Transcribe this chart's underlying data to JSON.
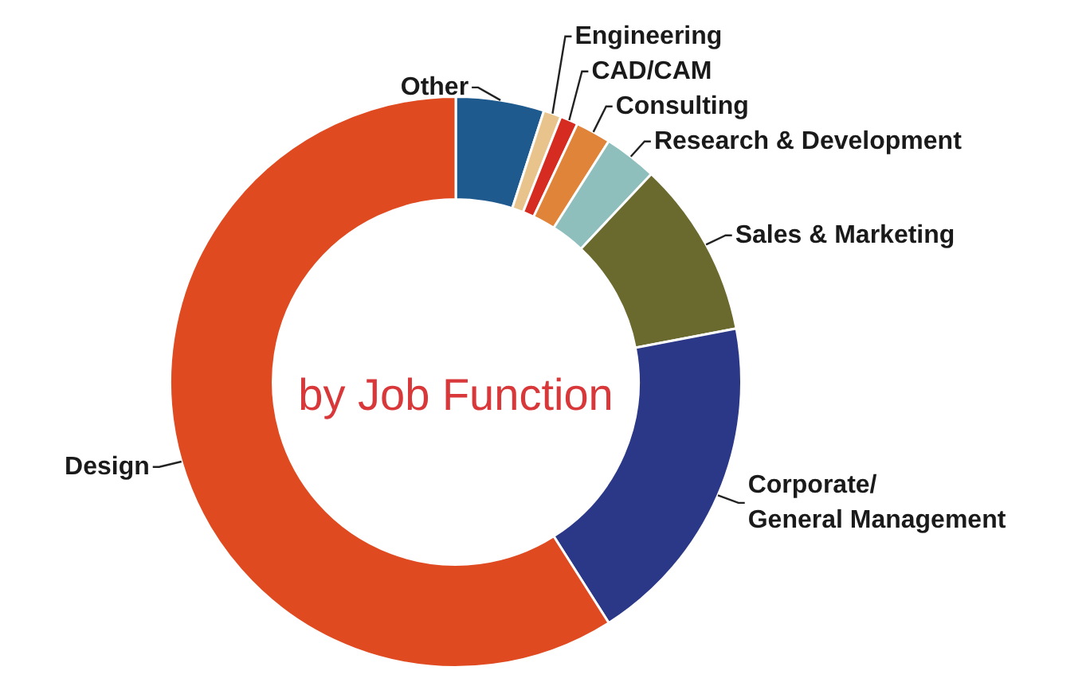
{
  "chart_data": {
    "type": "donut",
    "title": "by Job Function",
    "categories": [
      "Other",
      "Engineering",
      "CAD/CAM",
      "Consulting",
      "Research & Development",
      "Sales & Marketing",
      "Corporate/ General Management",
      "Design"
    ],
    "values": [
      5,
      1,
      1,
      2,
      3,
      10,
      19,
      59
    ],
    "colors": [
      "#1f5a8f",
      "#e8c48c",
      "#d62b20",
      "#e0843a",
      "#8fbfbc",
      "#6b6a2e",
      "#2a3887",
      "#e04a21"
    ],
    "legend": false
  }
}
